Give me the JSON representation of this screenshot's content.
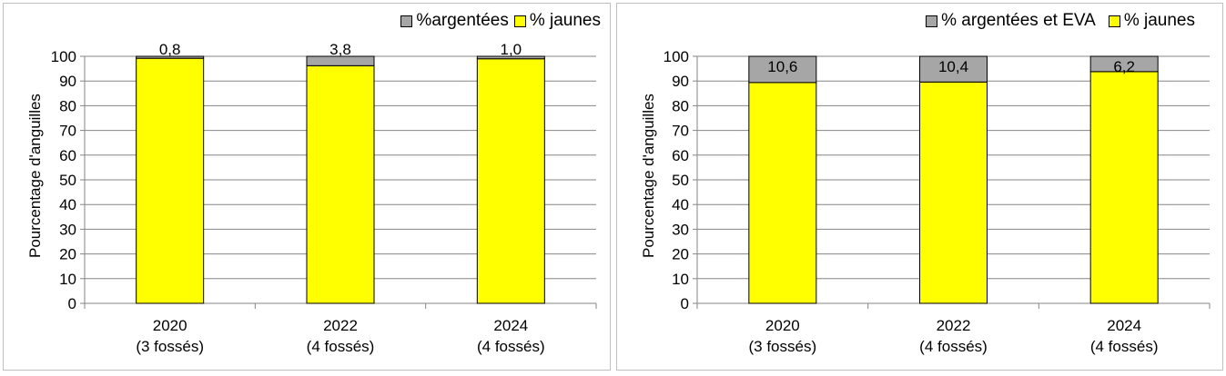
{
  "colors": {
    "yellow": "#ffff00",
    "silver": "#a6a6a6",
    "grid": "#868686",
    "border": "#bfbfbf"
  },
  "chart_data": [
    {
      "type": "bar",
      "stacked": true,
      "categories": [
        "2020|(3 fossés)",
        "2022|(4 fossés)",
        "2024|(4 fossés)"
      ],
      "series": [
        {
          "name": "% jaunes",
          "values": [
            99.2,
            96.2,
            99.0
          ],
          "color": "#ffff00"
        },
        {
          "name": "%argentées",
          "values": [
            0.8,
            3.8,
            1.0
          ],
          "color": "#a6a6a6",
          "labels": [
            "0,8",
            "3,8",
            "1,0"
          ]
        }
      ],
      "ylabel": "Pourcentage d'anguilles",
      "ylim": [
        0,
        100
      ],
      "yticks": [
        0,
        10,
        20,
        30,
        40,
        50,
        60,
        70,
        80,
        90,
        100
      ],
      "grid": true,
      "legend_position": "top-right"
    },
    {
      "type": "bar",
      "stacked": true,
      "categories": [
        "2020|(3 fossés)",
        "2022|(4 fossés)",
        "2024|(4 fossés)"
      ],
      "series": [
        {
          "name": "% jaunes",
          "values": [
            89.4,
            89.6,
            93.8
          ],
          "color": "#ffff00"
        },
        {
          "name": "% argentées et EVA",
          "values": [
            10.6,
            10.4,
            6.2
          ],
          "color": "#a6a6a6",
          "labels": [
            "10,6",
            "10,4",
            "6,2"
          ]
        }
      ],
      "ylabel": "Pourcentage d'anguilles",
      "ylim": [
        0,
        100
      ],
      "yticks": [
        0,
        10,
        20,
        30,
        40,
        50,
        60,
        70,
        80,
        90,
        100
      ],
      "grid": true,
      "legend_position": "top-right"
    }
  ]
}
